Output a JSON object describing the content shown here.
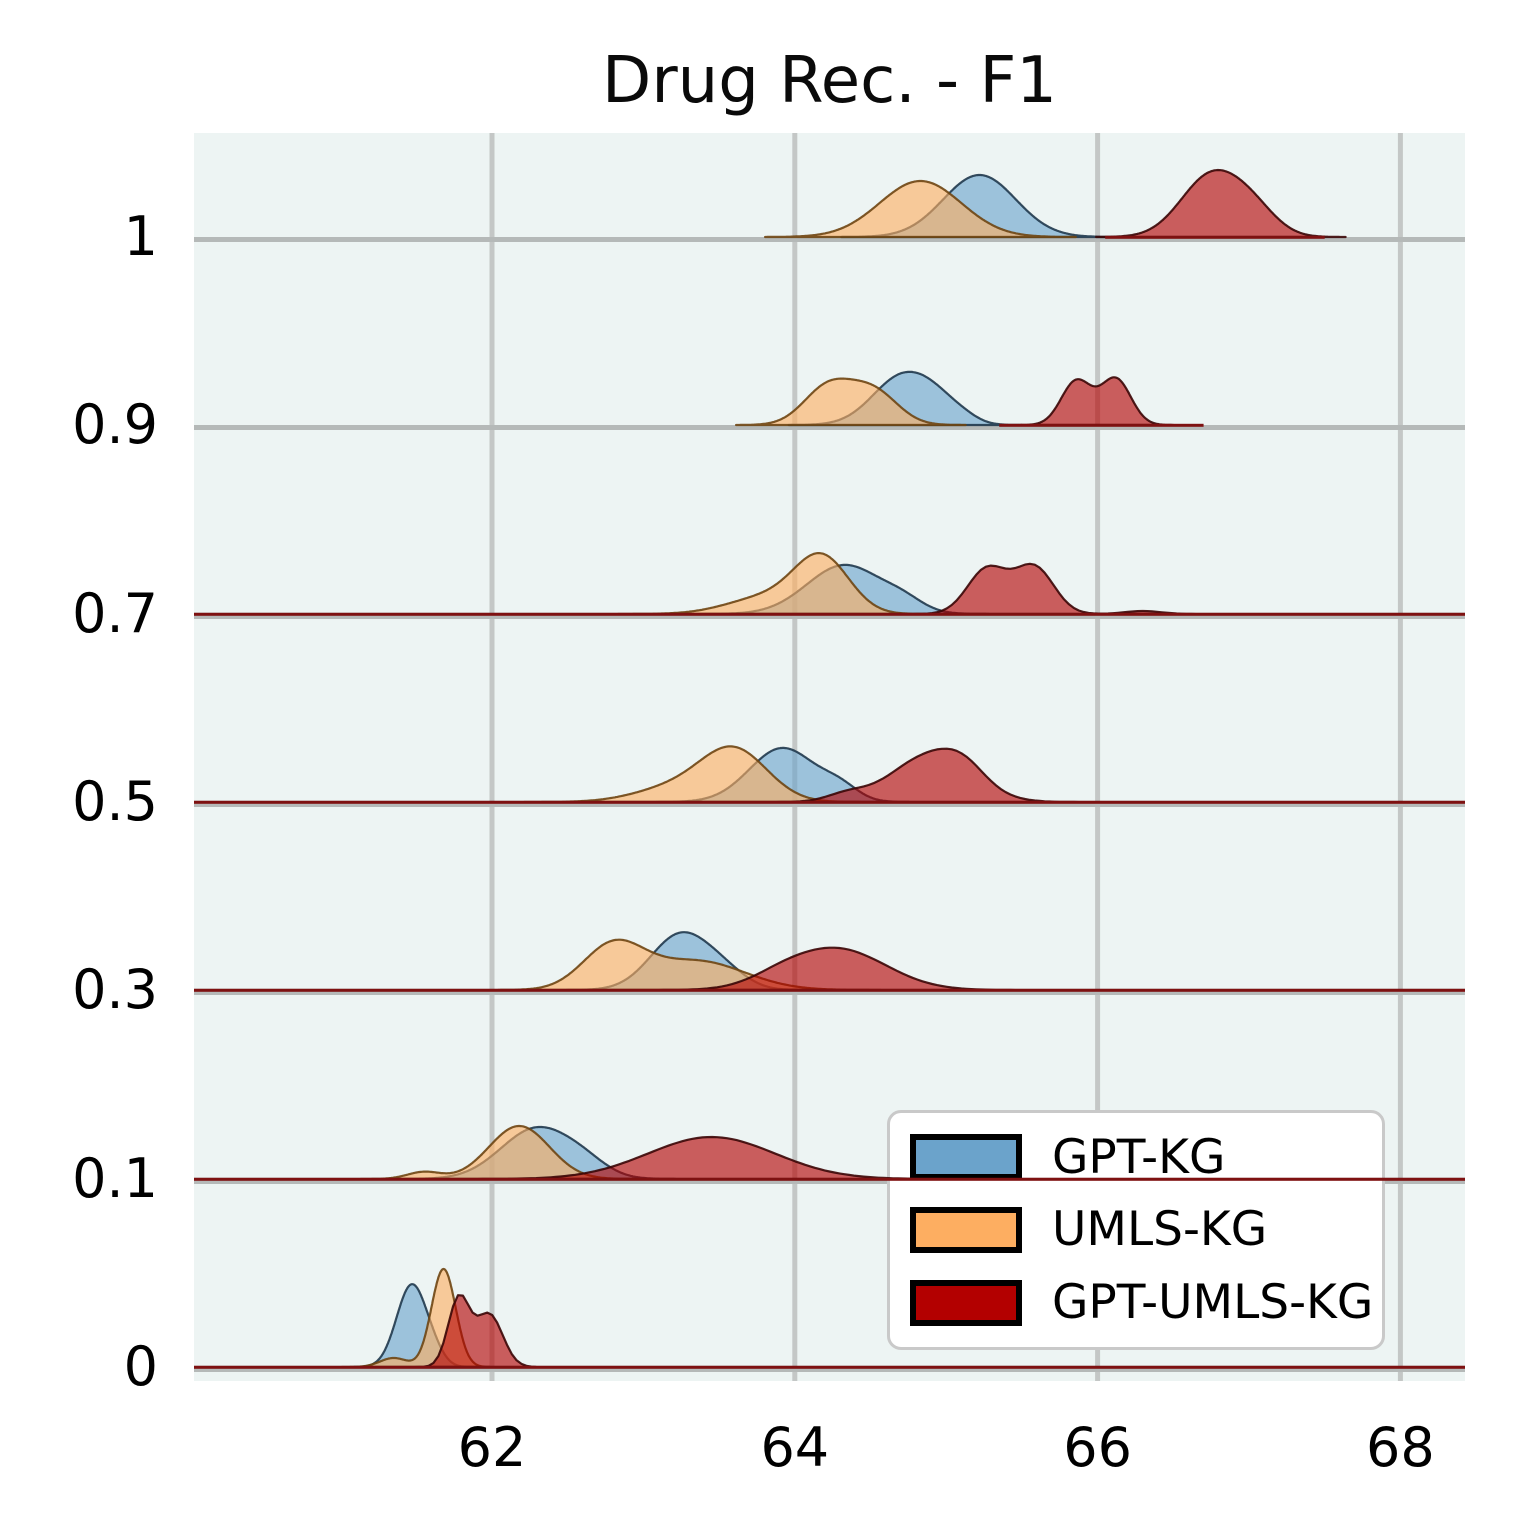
{
  "title": "Drug Rec. - F1",
  "colors": {
    "figure_bg": "#ffffff",
    "plot_bg": "#edf4f3",
    "vgrid": "#c4c7c6",
    "baseline_gray": "#b5b9b8",
    "baseline_red": "#7e1111",
    "series_blue": "#6ba3cb",
    "series_orange": "#fdae61",
    "series_red": "#b30000",
    "stroke_blue": "#20394c",
    "stroke_orange": "#6e4512",
    "stroke_red": "#3a0606",
    "legend_border": "#c9c9c9",
    "text": "#000000"
  },
  "x_axis": {
    "tick_labels": [
      "62",
      "64",
      "66",
      "68"
    ],
    "tick_values": [
      62,
      64,
      66,
      68
    ],
    "data_range": [
      60.03,
      68.43
    ]
  },
  "y_axis": {
    "tick_labels": [
      "1",
      "0.9",
      "0.7",
      "0.5",
      "0.3",
      "0.1",
      "0"
    ]
  },
  "legend": {
    "items": [
      {
        "label": "GPT-KG",
        "series": "blue"
      },
      {
        "label": "UMLS-KG",
        "series": "orange"
      },
      {
        "label": "GPT-UMLS-KG",
        "series": "red"
      }
    ]
  },
  "chart_data": {
    "type": "ridgeline-kde",
    "title": "Drug Rec. - F1",
    "series_names": [
      "GPT-KG",
      "UMLS-KG",
      "GPT-UMLS-KG"
    ],
    "x_range": [
      60.03,
      68.43
    ],
    "row_labels": [
      "1",
      "0.9",
      "0.7",
      "0.5",
      "0.3",
      "0.1",
      "0"
    ],
    "grid": true,
    "legend_position": "lower right",
    "rows": [
      {
        "label": "1",
        "red_full_baseline": false,
        "red_line_range": [
          66.05,
          67.5
        ],
        "kde": {
          "blue": [
            {
              "m": 65.22,
              "s": 0.24,
              "a": 62
            }
          ],
          "orange": [
            {
              "m": 64.83,
              "s": 0.27,
              "a": 56
            }
          ],
          "red": [
            {
              "m": 66.75,
              "s": 0.2,
              "a": 61
            },
            {
              "m": 67.03,
              "s": 0.16,
              "a": 22
            }
          ]
        }
      },
      {
        "label": "0.9",
        "red_full_baseline": false,
        "red_line_range": [
          65.35,
          66.7
        ],
        "kde": {
          "blue": [
            {
              "m": 64.72,
              "s": 0.2,
              "a": 50
            },
            {
              "m": 64.95,
              "s": 0.13,
              "a": 12
            },
            {
              "m": 65.12,
              "s": 0.1,
              "a": 5
            }
          ],
          "orange": [
            {
              "m": 64.22,
              "s": 0.16,
              "a": 38
            },
            {
              "m": 64.52,
              "s": 0.16,
              "a": 33
            }
          ],
          "red": [
            {
              "m": 65.86,
              "s": 0.1,
              "a": 44
            },
            {
              "m": 66.12,
              "s": 0.1,
              "a": 46
            }
          ]
        }
      },
      {
        "label": "0.7",
        "red_full_baseline": true,
        "red_line_range": null,
        "kde": {
          "blue": [
            {
              "m": 64.33,
              "s": 0.25,
              "a": 49
            },
            {
              "m": 64.72,
              "s": 0.13,
              "a": 9
            }
          ],
          "orange": [
            {
              "m": 64.18,
              "s": 0.18,
              "a": 54
            },
            {
              "m": 63.82,
              "s": 0.26,
              "a": 17
            }
          ],
          "red": [
            {
              "m": 65.27,
              "s": 0.13,
              "a": 45
            },
            {
              "m": 65.58,
              "s": 0.13,
              "a": 47
            },
            {
              "m": 66.3,
              "s": 0.12,
              "a": 3
            }
          ]
        }
      },
      {
        "label": "0.5",
        "red_full_baseline": true,
        "red_line_range": null,
        "kde": {
          "blue": [
            {
              "m": 63.92,
              "s": 0.22,
              "a": 54
            },
            {
              "m": 64.3,
              "s": 0.12,
              "a": 12
            }
          ],
          "orange": [
            {
              "m": 63.6,
              "s": 0.22,
              "a": 51
            },
            {
              "m": 63.2,
              "s": 0.26,
              "a": 14
            }
          ],
          "red": [
            {
              "m": 64.9,
              "s": 0.26,
              "a": 47
            },
            {
              "m": 65.12,
              "s": 0.14,
              "a": 14
            },
            {
              "m": 64.34,
              "s": 0.13,
              "a": 7
            }
          ]
        }
      },
      {
        "label": "0.3",
        "red_full_baseline": true,
        "red_line_range": null,
        "kde": {
          "blue": [
            {
              "m": 63.25,
              "s": 0.2,
              "a": 56
            },
            {
              "m": 63.55,
              "s": 0.15,
              "a": 12
            }
          ],
          "orange": [
            {
              "m": 62.8,
              "s": 0.2,
              "a": 43
            },
            {
              "m": 63.35,
              "s": 0.32,
              "a": 29
            }
          ],
          "red": [
            {
              "m": 64.28,
              "s": 0.32,
              "a": 41
            },
            {
              "m": 63.9,
              "s": 0.2,
              "a": 7
            }
          ]
        }
      },
      {
        "label": "0.1",
        "red_full_baseline": true,
        "red_line_range": null,
        "kde": {
          "blue": [
            {
              "m": 62.3,
              "s": 0.24,
              "a": 51
            },
            {
              "m": 62.62,
              "s": 0.15,
              "a": 9
            }
          ],
          "orange": [
            {
              "m": 62.18,
              "s": 0.2,
              "a": 53
            },
            {
              "m": 61.55,
              "s": 0.11,
              "a": 7
            }
          ],
          "red": [
            {
              "m": 63.45,
              "s": 0.42,
              "a": 42
            }
          ]
        }
      },
      {
        "label": "0",
        "red_full_baseline": true,
        "red_line_range": null,
        "kde": {
          "blue": [
            {
              "m": 61.47,
              "s": 0.1,
              "a": 82
            },
            {
              "m": 61.62,
              "s": 0.07,
              "a": 8
            }
          ],
          "orange": [
            {
              "m": 61.68,
              "s": 0.08,
              "a": 98
            },
            {
              "m": 61.35,
              "s": 0.09,
              "a": 9
            }
          ],
          "red": [
            {
              "m": 61.78,
              "s": 0.07,
              "a": 68
            },
            {
              "m": 61.98,
              "s": 0.09,
              "a": 53
            }
          ]
        }
      }
    ]
  }
}
